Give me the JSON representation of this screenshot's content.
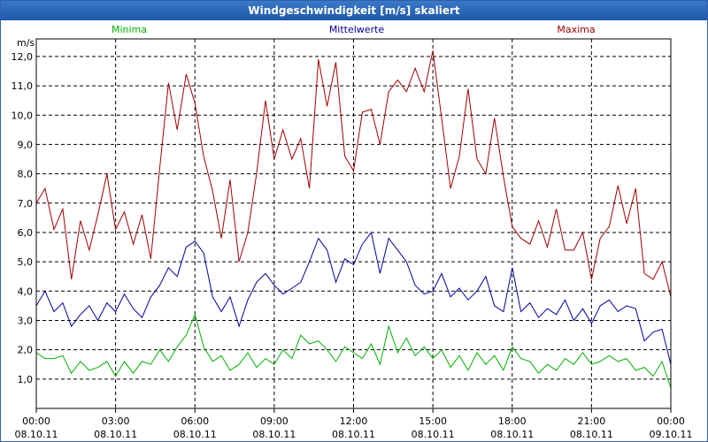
{
  "window": {
    "title": "Windgeschwindigkeit [m/s] skaliert"
  },
  "chart_data": {
    "type": "line",
    "title": "Windgeschwindigkeit [m/s] skaliert",
    "ylabel": "m/s",
    "ylim": [
      0,
      12.6
    ],
    "xlim": [
      0,
      24
    ],
    "y_ticks": [
      "1,0",
      "2,0",
      "3,0",
      "4,0",
      "5,0",
      "6,0",
      "7,0",
      "8,0",
      "9,0",
      "10,0",
      "11,0",
      "12,0"
    ],
    "x_ticks": [
      {
        "time": "00:00",
        "date": "08.10.11"
      },
      {
        "time": "03:00",
        "date": "08.10.11"
      },
      {
        "time": "06:00",
        "date": "08.10.11"
      },
      {
        "time": "09:00",
        "date": "08.10.11"
      },
      {
        "time": "12:00",
        "date": "08.10.11"
      },
      {
        "time": "15:00",
        "date": "08.10.11"
      },
      {
        "time": "18:00",
        "date": "08.10.11"
      },
      {
        "time": "21:00",
        "date": "08.10.11"
      },
      {
        "time": "00:00",
        "date": "09.10.11"
      }
    ],
    "grid": true,
    "legend_position": "top",
    "series": [
      {
        "name": "Minima",
        "color": "#00b000",
        "points": [
          [
            0.0,
            1.9
          ],
          [
            0.33,
            1.7
          ],
          [
            0.67,
            1.7
          ],
          [
            1.0,
            1.8
          ],
          [
            1.33,
            1.2
          ],
          [
            1.67,
            1.6
          ],
          [
            2.0,
            1.3
          ],
          [
            2.33,
            1.4
          ],
          [
            2.67,
            1.6
          ],
          [
            3.0,
            1.1
          ],
          [
            3.33,
            1.6
          ],
          [
            3.67,
            1.2
          ],
          [
            4.0,
            1.6
          ],
          [
            4.33,
            1.5
          ],
          [
            4.67,
            2.0
          ],
          [
            5.0,
            1.6
          ],
          [
            5.33,
            2.1
          ],
          [
            5.67,
            2.5
          ],
          [
            6.0,
            3.2
          ],
          [
            6.33,
            2.1
          ],
          [
            6.67,
            1.6
          ],
          [
            7.0,
            1.8
          ],
          [
            7.33,
            1.3
          ],
          [
            7.67,
            1.5
          ],
          [
            8.0,
            1.9
          ],
          [
            8.33,
            1.4
          ],
          [
            8.67,
            1.7
          ],
          [
            9.0,
            1.5
          ],
          [
            9.33,
            2.0
          ],
          [
            9.67,
            1.7
          ],
          [
            10.0,
            2.5
          ],
          [
            10.33,
            2.2
          ],
          [
            10.67,
            2.3
          ],
          [
            11.0,
            2.0
          ],
          [
            11.33,
            1.6
          ],
          [
            11.67,
            2.1
          ],
          [
            12.0,
            1.9
          ],
          [
            12.33,
            1.7
          ],
          [
            12.67,
            2.2
          ],
          [
            13.0,
            1.5
          ],
          [
            13.33,
            2.8
          ],
          [
            13.67,
            1.9
          ],
          [
            14.0,
            2.4
          ],
          [
            14.33,
            1.8
          ],
          [
            14.67,
            2.1
          ],
          [
            15.0,
            1.7
          ],
          [
            15.33,
            2.0
          ],
          [
            15.67,
            1.4
          ],
          [
            16.0,
            1.8
          ],
          [
            16.33,
            1.3
          ],
          [
            16.67,
            1.9
          ],
          [
            17.0,
            1.5
          ],
          [
            17.33,
            1.8
          ],
          [
            17.67,
            1.3
          ],
          [
            18.0,
            2.1
          ],
          [
            18.33,
            1.7
          ],
          [
            18.67,
            1.6
          ],
          [
            19.0,
            1.2
          ],
          [
            19.33,
            1.5
          ],
          [
            19.67,
            1.3
          ],
          [
            20.0,
            1.7
          ],
          [
            20.33,
            1.5
          ],
          [
            20.67,
            1.9
          ],
          [
            21.0,
            1.5
          ],
          [
            21.33,
            1.6
          ],
          [
            21.67,
            1.8
          ],
          [
            22.0,
            1.6
          ],
          [
            22.33,
            1.7
          ],
          [
            22.67,
            1.3
          ],
          [
            23.0,
            1.4
          ],
          [
            23.33,
            1.1
          ],
          [
            23.67,
            1.6
          ],
          [
            24.0,
            0.7
          ]
        ]
      },
      {
        "name": "Mittelwerte",
        "color": "#0000a0",
        "points": [
          [
            0.0,
            3.5
          ],
          [
            0.33,
            4.0
          ],
          [
            0.67,
            3.3
          ],
          [
            1.0,
            3.6
          ],
          [
            1.33,
            2.8
          ],
          [
            1.67,
            3.2
          ],
          [
            2.0,
            3.5
          ],
          [
            2.33,
            3.0
          ],
          [
            2.67,
            3.6
          ],
          [
            3.0,
            3.3
          ],
          [
            3.33,
            3.9
          ],
          [
            3.67,
            3.4
          ],
          [
            4.0,
            3.1
          ],
          [
            4.33,
            3.8
          ],
          [
            4.67,
            4.2
          ],
          [
            5.0,
            4.8
          ],
          [
            5.33,
            4.5
          ],
          [
            5.67,
            5.5
          ],
          [
            6.0,
            5.7
          ],
          [
            6.33,
            5.3
          ],
          [
            6.67,
            3.8
          ],
          [
            7.0,
            3.3
          ],
          [
            7.33,
            3.8
          ],
          [
            7.67,
            2.8
          ],
          [
            8.0,
            3.7
          ],
          [
            8.33,
            4.3
          ],
          [
            8.67,
            4.6
          ],
          [
            9.0,
            4.2
          ],
          [
            9.33,
            3.9
          ],
          [
            9.67,
            4.1
          ],
          [
            10.0,
            4.3
          ],
          [
            10.33,
            5.0
          ],
          [
            10.67,
            5.8
          ],
          [
            11.0,
            5.4
          ],
          [
            11.33,
            4.3
          ],
          [
            11.67,
            5.1
          ],
          [
            12.0,
            4.9
          ],
          [
            12.33,
            5.6
          ],
          [
            12.67,
            6.0
          ],
          [
            13.0,
            4.6
          ],
          [
            13.33,
            5.8
          ],
          [
            13.67,
            5.4
          ],
          [
            14.0,
            5.0
          ],
          [
            14.33,
            4.2
          ],
          [
            14.67,
            3.9
          ],
          [
            15.0,
            4.0
          ],
          [
            15.33,
            4.6
          ],
          [
            15.67,
            3.8
          ],
          [
            16.0,
            4.1
          ],
          [
            16.33,
            3.7
          ],
          [
            16.67,
            4.0
          ],
          [
            17.0,
            4.5
          ],
          [
            17.33,
            3.5
          ],
          [
            17.67,
            3.3
          ],
          [
            18.0,
            4.8
          ],
          [
            18.33,
            3.3
          ],
          [
            18.67,
            3.6
          ],
          [
            19.0,
            3.1
          ],
          [
            19.33,
            3.4
          ],
          [
            19.67,
            3.2
          ],
          [
            20.0,
            3.7
          ],
          [
            20.33,
            3.0
          ],
          [
            20.67,
            3.4
          ],
          [
            21.0,
            2.9
          ],
          [
            21.33,
            3.5
          ],
          [
            21.67,
            3.7
          ],
          [
            22.0,
            3.3
          ],
          [
            22.33,
            3.5
          ],
          [
            22.67,
            3.4
          ],
          [
            23.0,
            2.3
          ],
          [
            23.33,
            2.6
          ],
          [
            23.67,
            2.7
          ],
          [
            24.0,
            1.5
          ]
        ]
      },
      {
        "name": "Maxima",
        "color": "#a00000",
        "points": [
          [
            0.0,
            7.0
          ],
          [
            0.33,
            7.5
          ],
          [
            0.67,
            6.1
          ],
          [
            1.0,
            6.8
          ],
          [
            1.33,
            4.4
          ],
          [
            1.67,
            6.4
          ],
          [
            2.0,
            5.4
          ],
          [
            2.33,
            6.6
          ],
          [
            2.67,
            8.0
          ],
          [
            3.0,
            6.1
          ],
          [
            3.33,
            6.7
          ],
          [
            3.67,
            5.6
          ],
          [
            4.0,
            6.6
          ],
          [
            4.33,
            5.1
          ],
          [
            4.67,
            8.2
          ],
          [
            5.0,
            11.1
          ],
          [
            5.33,
            9.5
          ],
          [
            5.67,
            11.4
          ],
          [
            6.0,
            10.4
          ],
          [
            6.33,
            8.6
          ],
          [
            6.67,
            7.4
          ],
          [
            7.0,
            5.8
          ],
          [
            7.33,
            7.8
          ],
          [
            7.67,
            5.0
          ],
          [
            8.0,
            6.0
          ],
          [
            8.33,
            8.0
          ],
          [
            8.67,
            10.5
          ],
          [
            9.0,
            8.5
          ],
          [
            9.33,
            9.5
          ],
          [
            9.67,
            8.5
          ],
          [
            10.0,
            9.2
          ],
          [
            10.33,
            7.5
          ],
          [
            10.67,
            11.9
          ],
          [
            11.0,
            10.3
          ],
          [
            11.33,
            11.8
          ],
          [
            11.67,
            8.6
          ],
          [
            12.0,
            8.1
          ],
          [
            12.33,
            10.1
          ],
          [
            12.67,
            10.2
          ],
          [
            13.0,
            9.0
          ],
          [
            13.33,
            10.8
          ],
          [
            13.67,
            11.2
          ],
          [
            14.0,
            10.8
          ],
          [
            14.33,
            11.6
          ],
          [
            14.67,
            10.8
          ],
          [
            15.0,
            12.2
          ],
          [
            15.33,
            9.9
          ],
          [
            15.67,
            7.5
          ],
          [
            16.0,
            8.6
          ],
          [
            16.33,
            10.9
          ],
          [
            16.67,
            8.5
          ],
          [
            17.0,
            8.0
          ],
          [
            17.33,
            9.9
          ],
          [
            17.67,
            7.9
          ],
          [
            18.0,
            6.2
          ],
          [
            18.33,
            5.8
          ],
          [
            18.67,
            5.6
          ],
          [
            19.0,
            6.4
          ],
          [
            19.33,
            5.5
          ],
          [
            19.67,
            6.8
          ],
          [
            20.0,
            5.4
          ],
          [
            20.33,
            5.4
          ],
          [
            20.67,
            6.0
          ],
          [
            21.0,
            4.4
          ],
          [
            21.33,
            5.8
          ],
          [
            21.67,
            6.2
          ],
          [
            22.0,
            7.6
          ],
          [
            22.33,
            6.3
          ],
          [
            22.67,
            7.5
          ],
          [
            23.0,
            4.6
          ],
          [
            23.33,
            4.4
          ],
          [
            23.67,
            5.0
          ],
          [
            24.0,
            3.8
          ]
        ]
      }
    ]
  }
}
